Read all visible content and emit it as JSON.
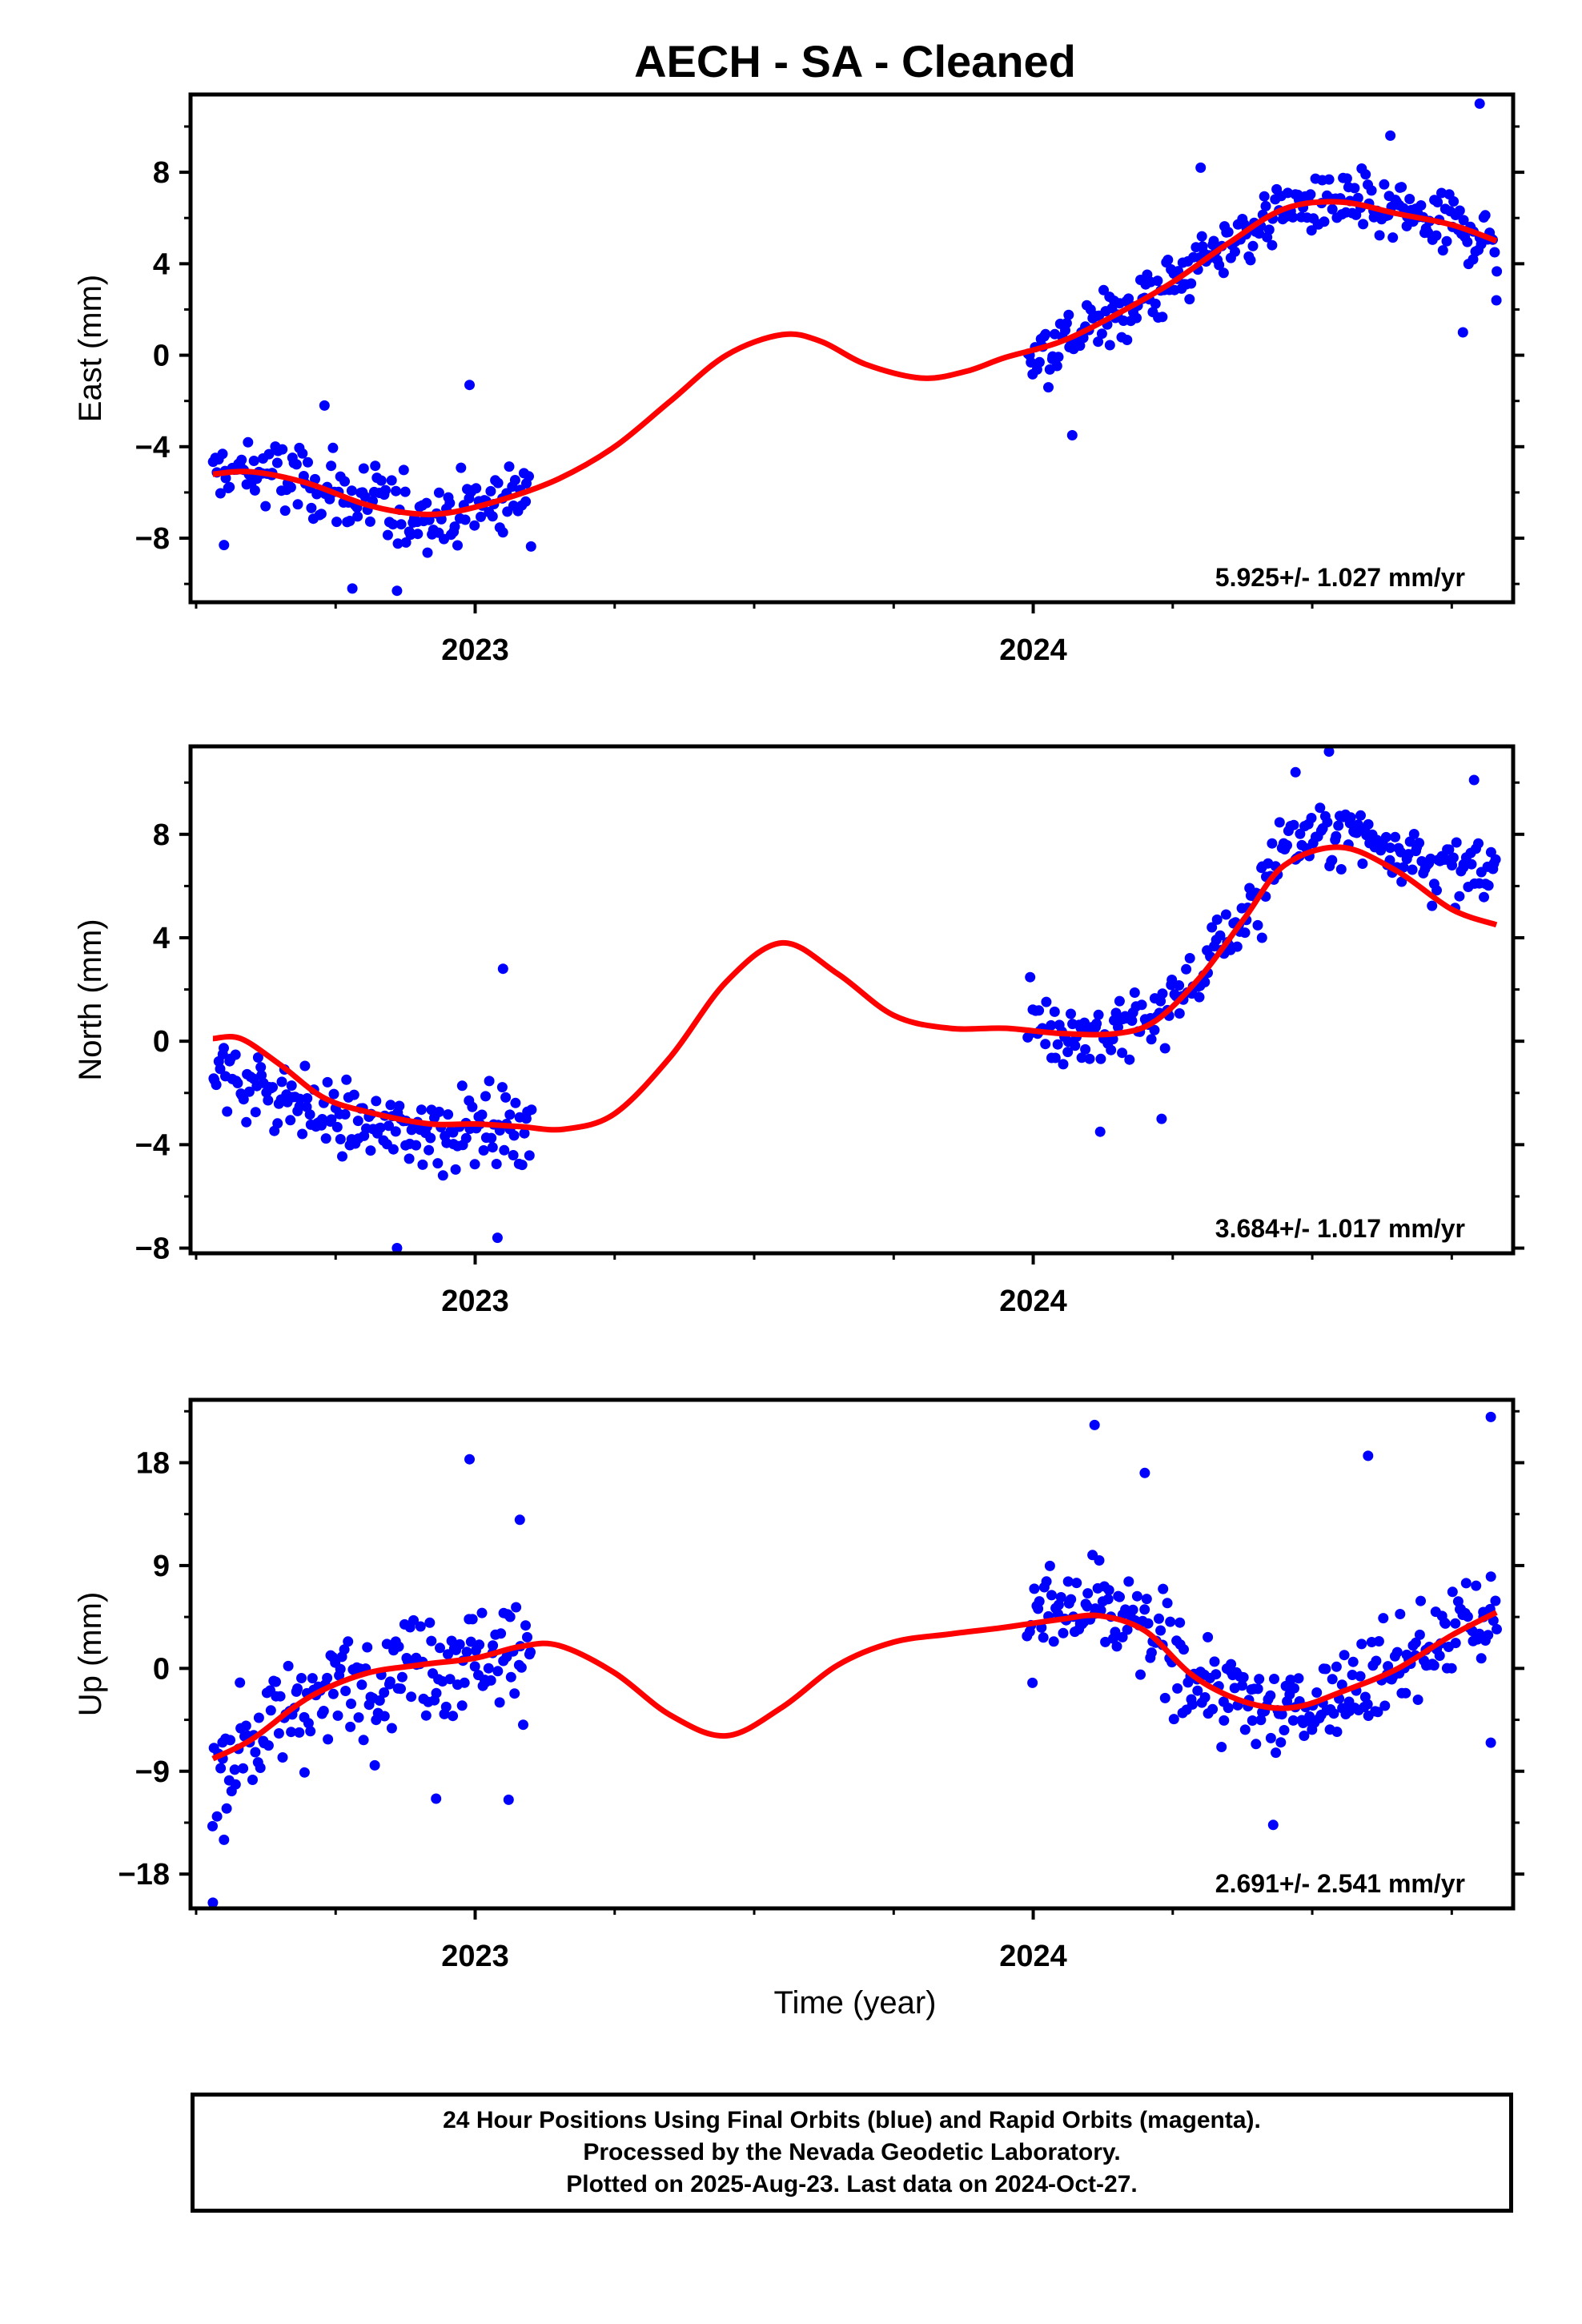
{
  "title": "AECH  - SA - Cleaned",
  "xlabel": "Time (year)",
  "footer": {
    "line1": "24 Hour Positions Using Final Orbits (blue) and Rapid Orbits (magenta).",
    "line2": "Processed by the Nevada Geodetic Laboratory.",
    "line3": "Plotted on 2025-Aug-23. Last data on 2024-Oct-27."
  },
  "colors": {
    "final_orbits": "#0000ff",
    "fit": "#ff0000"
  },
  "chart_data": [
    {
      "type": "scatter",
      "ylabel": "East (mm)",
      "rate_label": "5.925+/- 1.027 mm/yr",
      "xlim": [
        2022.49,
        2024.86
      ],
      "ylim": [
        -10.8,
        11.4
      ],
      "yticks": [
        -8,
        -4,
        0,
        4,
        8
      ],
      "xticks": [
        2023,
        2024
      ],
      "grid": false,
      "gap": [
        2023.1,
        2023.99
      ],
      "fit_curve": {
        "x": [
          2022.53,
          2022.6,
          2022.7,
          2022.8,
          2022.88,
          2022.95,
          2023.05,
          2023.15,
          2023.25,
          2023.35,
          2023.45,
          2023.55,
          2023.62,
          2023.7,
          2023.8,
          2023.88,
          2023.95,
          2024.05,
          2024.15,
          2024.25,
          2024.35,
          2024.45,
          2024.55,
          2024.65,
          2024.75,
          2024.83
        ],
        "y": [
          -5.2,
          -5.1,
          -5.6,
          -6.5,
          -6.9,
          -6.9,
          -6.3,
          -5.4,
          -4.0,
          -2.0,
          0.0,
          0.9,
          0.6,
          -0.4,
          -1.0,
          -0.7,
          -0.1,
          0.6,
          1.8,
          3.2,
          4.9,
          6.4,
          6.7,
          6.2,
          5.7,
          5.0
        ]
      },
      "segments": [
        {
          "x0": 2022.53,
          "x1": 2023.1,
          "trend": [
            [
              2022.53,
              -5.2
            ],
            [
              2022.6,
              -5.1
            ],
            [
              2022.7,
              -5.6
            ],
            [
              2022.8,
              -6.5
            ],
            [
              2022.88,
              -6.9
            ],
            [
              2022.95,
              -6.9
            ],
            [
              2023.05,
              -6.3
            ],
            [
              2023.1,
              -5.8
            ]
          ],
          "spread": 1.3,
          "n": 165
        },
        {
          "x0": 2023.99,
          "x1": 2024.83,
          "trend": [
            [
              2023.99,
              -0.1
            ],
            [
              2024.05,
              0.6
            ],
            [
              2024.15,
              1.8
            ],
            [
              2024.25,
              3.2
            ],
            [
              2024.35,
              4.9
            ],
            [
              2024.45,
              6.4
            ],
            [
              2024.55,
              6.7
            ],
            [
              2024.65,
              6.2
            ],
            [
              2024.75,
              5.7
            ],
            [
              2024.83,
              5.0
            ]
          ],
          "spread": 1.1,
          "n": 255
        }
      ],
      "outliers": [
        [
          2022.55,
          -8.3
        ],
        [
          2022.73,
          -2.2
        ],
        [
          2022.78,
          -10.2
        ],
        [
          2022.86,
          -10.3
        ],
        [
          2022.99,
          -1.3
        ],
        [
          2024.07,
          -3.5
        ],
        [
          2024.3,
          8.2
        ],
        [
          2024.64,
          9.6
        ],
        [
          2024.77,
          1.0
        ],
        [
          2024.8,
          11.0
        ],
        [
          2024.83,
          2.4
        ]
      ]
    },
    {
      "type": "scatter",
      "ylabel": "North (mm)",
      "rate_label": "3.684+/- 1.017 mm/yr",
      "xlim": [
        2022.49,
        2024.86
      ],
      "ylim": [
        -8.2,
        11.4
      ],
      "yticks": [
        -8,
        -4,
        0,
        4,
        8
      ],
      "xticks": [
        2023,
        2024
      ],
      "grid": false,
      "gap": [
        2023.1,
        2023.99
      ],
      "fit_curve": {
        "x": [
          2022.53,
          2022.58,
          2022.65,
          2022.73,
          2022.82,
          2022.92,
          2023.0,
          2023.08,
          2023.16,
          2023.25,
          2023.35,
          2023.45,
          2023.55,
          2023.65,
          2023.75,
          2023.85,
          2023.95,
          2024.05,
          2024.15,
          2024.22,
          2024.3,
          2024.38,
          2024.45,
          2024.55,
          2024.65,
          2024.75,
          2024.83
        ],
        "y": [
          0.1,
          0.1,
          -0.9,
          -2.2,
          -2.8,
          -3.2,
          -3.2,
          -3.3,
          -3.4,
          -2.8,
          -0.6,
          2.3,
          3.8,
          2.6,
          1.0,
          0.5,
          0.5,
          0.3,
          0.3,
          0.8,
          2.5,
          4.8,
          6.8,
          7.5,
          6.6,
          5.1,
          4.5
        ]
      },
      "segments": [
        {
          "x0": 2022.53,
          "x1": 2023.1,
          "trend": [
            [
              2022.53,
              -1.2
            ],
            [
              2022.58,
              -1.5
            ],
            [
              2022.65,
              -2.0
            ],
            [
              2022.73,
              -2.9
            ],
            [
              2022.82,
              -3.4
            ],
            [
              2022.92,
              -3.4
            ],
            [
              2023.0,
              -3.3
            ],
            [
              2023.1,
              -3.1
            ]
          ],
          "spread": 1.1,
          "n": 175
        },
        {
          "x0": 2023.99,
          "x1": 2024.83,
          "trend": [
            [
              2023.99,
              0.8
            ],
            [
              2024.05,
              0.4
            ],
            [
              2024.15,
              0.3
            ],
            [
              2024.22,
              0.9
            ],
            [
              2024.3,
              2.6
            ],
            [
              2024.38,
              5.0
            ],
            [
              2024.45,
              7.6
            ],
            [
              2024.55,
              8.1
            ],
            [
              2024.65,
              7.6
            ],
            [
              2024.75,
              6.5
            ],
            [
              2024.83,
              6.5
            ]
          ],
          "spread": 1.0,
          "n": 250
        }
      ],
      "outliers": [
        [
          2023.05,
          2.8
        ],
        [
          2022.86,
          -8.0
        ],
        [
          2023.04,
          -7.6
        ],
        [
          2024.47,
          10.4
        ],
        [
          2024.53,
          11.2
        ],
        [
          2024.79,
          10.1
        ],
        [
          2024.12,
          -3.5
        ],
        [
          2024.23,
          -3.0
        ],
        [
          2024.41,
          4.0
        ]
      ]
    },
    {
      "type": "scatter",
      "ylabel": "Up (mm)",
      "rate_label": "2.691+/- 2.541 mm/yr",
      "xlim": [
        2022.49,
        2024.86
      ],
      "ylim": [
        -21.0,
        23.5
      ],
      "yticks": [
        -18,
        -9,
        0,
        9,
        18
      ],
      "xticks": [
        2023,
        2024
      ],
      "grid": false,
      "gap": [
        2023.1,
        2023.99
      ],
      "fit_curve": {
        "x": [
          2022.53,
          2022.6,
          2022.7,
          2022.8,
          2022.9,
          2023.0,
          2023.08,
          2023.15,
          2023.25,
          2023.35,
          2023.45,
          2023.55,
          2023.65,
          2023.75,
          2023.85,
          2023.95,
          2024.05,
          2024.12,
          2024.2,
          2024.28,
          2024.35,
          2024.42,
          2024.48,
          2024.55,
          2024.65,
          2024.75,
          2024.83
        ],
        "y": [
          -7.9,
          -6.2,
          -2.6,
          -0.5,
          0.3,
          0.9,
          1.9,
          2.0,
          -0.4,
          -4.1,
          -5.9,
          -3.4,
          0.3,
          2.3,
          3.0,
          3.6,
          4.3,
          4.6,
          3.3,
          -0.4,
          -2.4,
          -3.4,
          -3.3,
          -2.1,
          -0.1,
          2.9,
          4.9
        ]
      },
      "segments": [
        {
          "x0": 2022.53,
          "x1": 2023.1,
          "trend": [
            [
              2022.53,
              -8.5
            ],
            [
              2022.6,
              -6.0
            ],
            [
              2022.7,
              -2.6
            ],
            [
              2022.8,
              -1.0
            ],
            [
              2022.9,
              0.6
            ],
            [
              2023.0,
              1.2
            ],
            [
              2023.1,
              1.8
            ]
          ],
          "spread": 3.8,
          "n": 180
        },
        {
          "x0": 2023.99,
          "x1": 2024.83,
          "trend": [
            [
              2023.99,
              4.0
            ],
            [
              2024.05,
              5.2
            ],
            [
              2024.12,
              5.0
            ],
            [
              2024.2,
              3.3
            ],
            [
              2024.28,
              -0.4
            ],
            [
              2024.35,
              -2.6
            ],
            [
              2024.42,
              -3.6
            ],
            [
              2024.48,
              -3.5
            ],
            [
              2024.55,
              -2.0
            ],
            [
              2024.65,
              0.0
            ],
            [
              2024.75,
              3.0
            ],
            [
              2024.83,
              4.9
            ]
          ],
          "spread": 3.2,
          "n": 270
        }
      ],
      "outliers": [
        [
          2022.53,
          -20.5
        ],
        [
          2022.55,
          -15.0
        ],
        [
          2022.99,
          18.3
        ],
        [
          2023.08,
          13.0
        ],
        [
          2024.11,
          21.3
        ],
        [
          2024.2,
          17.1
        ],
        [
          2024.6,
          18.6
        ],
        [
          2024.82,
          22.0
        ],
        [
          2024.82,
          -6.5
        ],
        [
          2024.43,
          -13.7
        ],
        [
          2022.93,
          -11.4
        ],
        [
          2023.06,
          -11.5
        ]
      ]
    }
  ]
}
